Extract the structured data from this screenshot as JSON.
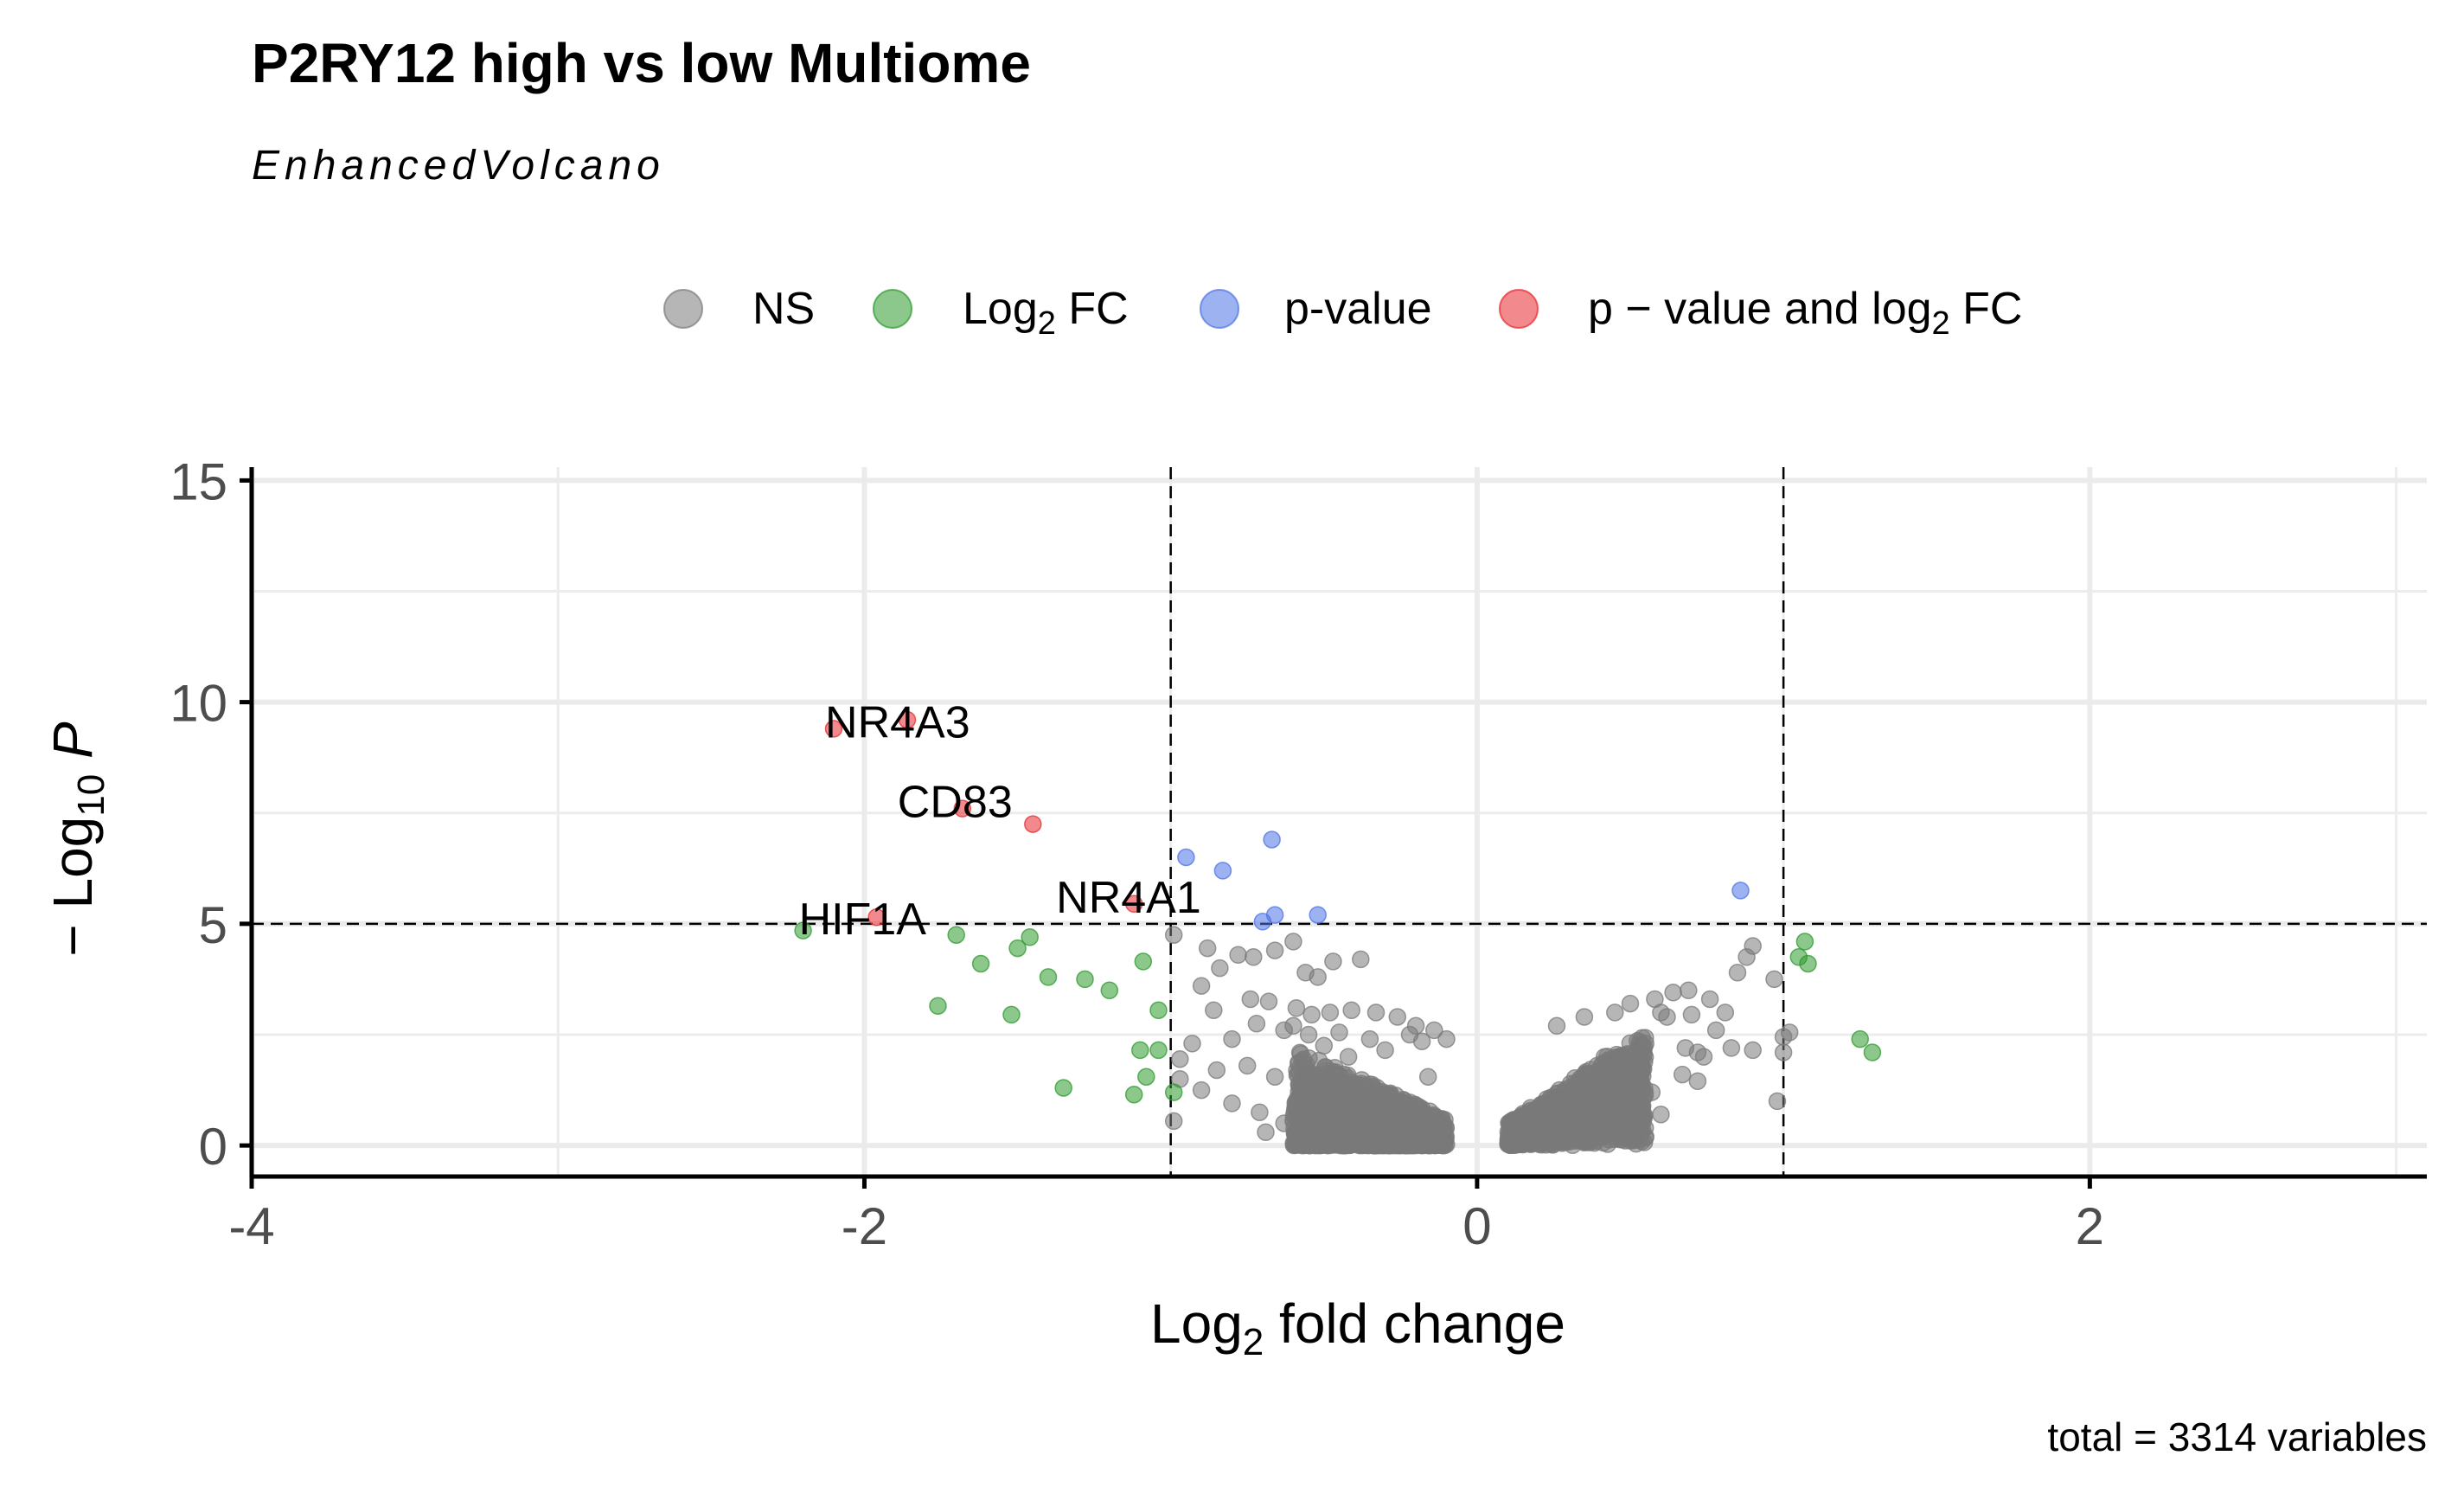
{
  "chart_data": {
    "type": "scatter",
    "title": "P2RY12 high vs low Multiome",
    "subtitle": "EnhancedVolcano",
    "caption": "total = 3314 variables",
    "xlabel": {
      "main": "Log",
      "sub": "2",
      "rest": " fold change"
    },
    "ylabel": {
      "pre": "− Log",
      "sub": "10",
      "rest": " P"
    },
    "xlim": [
      -4,
      3.1
    ],
    "ylim": [
      -0.7,
      15.3
    ],
    "x_ticks": [
      -4,
      -2,
      0,
      2
    ],
    "x_tick_labels": [
      "-4",
      "-2",
      "0",
      "2"
    ],
    "y_ticks": [
      0,
      5,
      10,
      15
    ],
    "y_tick_labels": [
      "0",
      "5",
      "10",
      "15"
    ],
    "x_minor_gridlines": [
      -3,
      -1,
      1,
      3
    ],
    "y_minor_gridlines": [
      2.5,
      7.5,
      12.5
    ],
    "grid": true,
    "thresholds": {
      "log2fc": [
        -1,
        1
      ],
      "neg_log10_p": 5
    },
    "legend": {
      "position": "top",
      "items": [
        {
          "key": "ns",
          "label": "NS",
          "color": "#7a7a7a"
        },
        {
          "key": "fc",
          "label": "Log",
          "sub": "2",
          "rest": " FC",
          "color": "#2e9a2e"
        },
        {
          "key": "p",
          "label": "p-value",
          "color": "#4d72e6"
        },
        {
          "key": "both",
          "label": "p − value and log",
          "sub": "2",
          "rest": " FC",
          "color": "#e8282e"
        }
      ]
    },
    "colors": {
      "ns": "#7a7a7a",
      "fc": "#2e9a2e",
      "p": "#4d72e6",
      "both": "#e8282e"
    },
    "series": [
      {
        "key": "both",
        "points": [
          [
            -2.1,
            9.4
          ],
          [
            -1.86,
            9.6
          ],
          [
            -1.68,
            7.6
          ],
          [
            -1.45,
            7.25
          ],
          [
            -1.12,
            5.45
          ],
          [
            -1.96,
            5.15
          ]
        ]
      },
      {
        "key": "p",
        "points": [
          [
            -0.95,
            6.5
          ],
          [
            -0.83,
            6.2
          ],
          [
            -0.67,
            6.9
          ],
          [
            -0.52,
            5.2
          ],
          [
            -0.66,
            5.2
          ],
          [
            -0.7,
            5.05
          ],
          [
            0.86,
            5.75
          ]
        ]
      },
      {
        "key": "fc",
        "points": [
          [
            -2.2,
            4.85
          ],
          [
            -1.7,
            4.75
          ],
          [
            -1.46,
            4.7
          ],
          [
            -1.5,
            4.45
          ],
          [
            -1.62,
            4.1
          ],
          [
            -1.4,
            3.8
          ],
          [
            -1.28,
            3.75
          ],
          [
            -1.2,
            3.5
          ],
          [
            -1.09,
            4.15
          ],
          [
            -1.76,
            3.15
          ],
          [
            -1.52,
            2.95
          ],
          [
            -1.04,
            3.05
          ],
          [
            -1.1,
            2.15
          ],
          [
            -1.04,
            2.15
          ],
          [
            -1.08,
            1.55
          ],
          [
            -0.99,
            1.2
          ],
          [
            -1.12,
            1.15
          ],
          [
            -1.35,
            1.3
          ],
          [
            1.07,
            4.6
          ],
          [
            1.05,
            4.25
          ],
          [
            1.08,
            4.1
          ],
          [
            1.25,
            2.4
          ],
          [
            1.29,
            2.1
          ]
        ]
      },
      {
        "key": "labeled",
        "labels": [
          {
            "text": "NR4A3",
            "x": -2.1,
            "y": 9.4
          },
          {
            "text": "CD83",
            "x": -1.68,
            "y": 7.6
          },
          {
            "text": "NR4A1",
            "x": -1.12,
            "y": 5.45
          },
          {
            "text": "HIF1A",
            "x": -1.96,
            "y": 5.15
          }
        ]
      },
      {
        "key": "ns",
        "count": 3278,
        "points": [
          [
            -0.99,
            4.75
          ],
          [
            -0.88,
            4.45
          ],
          [
            -0.78,
            4.3
          ],
          [
            -0.73,
            4.25
          ],
          [
            -0.66,
            4.4
          ],
          [
            -0.6,
            4.6
          ],
          [
            -0.47,
            4.15
          ],
          [
            -0.38,
            4.2
          ],
          [
            -0.56,
            3.9
          ],
          [
            -0.52,
            3.8
          ],
          [
            -0.84,
            4.0
          ],
          [
            -0.9,
            3.6
          ],
          [
            -0.74,
            3.3
          ],
          [
            -0.68,
            3.25
          ],
          [
            -0.59,
            3.1
          ],
          [
            -0.48,
            3.0
          ],
          [
            -0.41,
            3.05
          ],
          [
            -0.33,
            3.0
          ],
          [
            -0.26,
            2.9
          ],
          [
            -0.86,
            3.05
          ],
          [
            -0.72,
            2.75
          ],
          [
            -0.63,
            2.6
          ],
          [
            -0.55,
            2.5
          ],
          [
            -0.45,
            2.55
          ],
          [
            -0.93,
            2.3
          ],
          [
            -0.8,
            2.4
          ],
          [
            -0.97,
            1.95
          ],
          [
            -0.85,
            1.7
          ],
          [
            -0.75,
            1.8
          ],
          [
            -0.66,
            1.55
          ],
          [
            -0.57,
            1.5
          ],
          [
            -0.9,
            1.25
          ],
          [
            -0.8,
            0.95
          ],
          [
            -0.71,
            0.75
          ],
          [
            -0.63,
            0.5
          ],
          [
            -0.69,
            0.3
          ],
          [
            -0.99,
            0.55
          ],
          [
            -0.97,
            1.5
          ],
          [
            -0.35,
            2.4
          ],
          [
            -0.22,
            2.5
          ],
          [
            -0.14,
            2.6
          ],
          [
            0.26,
            2.7
          ],
          [
            0.35,
            2.9
          ],
          [
            0.45,
            3.0
          ],
          [
            0.5,
            3.2
          ],
          [
            0.58,
            3.3
          ],
          [
            0.64,
            3.45
          ],
          [
            0.69,
            3.5
          ],
          [
            0.76,
            3.3
          ],
          [
            0.6,
            3.0
          ],
          [
            0.7,
            2.95
          ],
          [
            0.78,
            2.6
          ],
          [
            0.68,
            2.2
          ],
          [
            0.72,
            2.1
          ],
          [
            0.55,
            2.3
          ],
          [
            0.67,
            1.6
          ],
          [
            0.72,
            1.45
          ],
          [
            0.57,
            1.2
          ],
          [
            0.47,
            0.95
          ],
          [
            0.43,
            0.9
          ],
          [
            0.54,
            0.5
          ],
          [
            0.55,
            0.2
          ],
          [
            0.6,
            0.7
          ],
          [
            0.36,
            0.35
          ],
          [
            0.24,
            0.4
          ],
          [
            0.3,
            1.3
          ],
          [
            0.85,
            3.9
          ],
          [
            0.88,
            4.25
          ],
          [
            0.9,
            4.5
          ],
          [
            0.97,
            3.75
          ],
          [
            1.02,
            2.55
          ],
          [
            1.0,
            2.45
          ],
          [
            0.98,
            1.0
          ],
          [
            0.9,
            2.15
          ],
          [
            0.81,
            3.0
          ],
          [
            0.74,
            2.0
          ],
          [
            0.62,
            2.9
          ],
          [
            0.83,
            2.2
          ],
          [
            1.0,
            2.1
          ],
          [
            -0.54,
            2.95
          ],
          [
            -0.6,
            2.7
          ],
          [
            -0.3,
            2.15
          ],
          [
            -0.18,
            2.35
          ],
          [
            -0.1,
            2.4
          ],
          [
            -0.2,
            2.7
          ],
          [
            -0.5,
            2.25
          ],
          [
            -0.42,
            2.0
          ],
          [
            -0.44,
            1.35
          ],
          [
            -0.2,
            0.9
          ],
          [
            -0.16,
            1.55
          ]
        ],
        "clusters": [
          {
            "x_range": [
              -0.6,
              -0.1
            ],
            "y_max": 2.0,
            "n": 1100
          },
          {
            "x_range": [
              0.1,
              0.55
            ],
            "y_max": 2.2,
            "n": 1400
          }
        ]
      }
    ]
  }
}
